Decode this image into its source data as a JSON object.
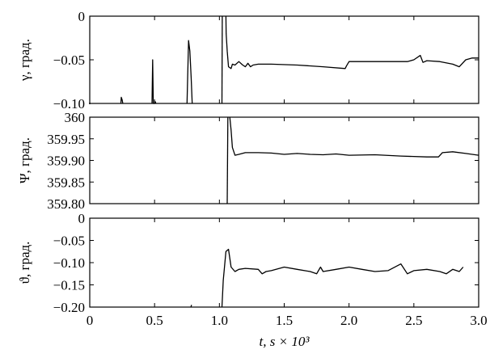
{
  "chart_data": [
    {
      "type": "line",
      "ylabel": "γ, град.",
      "ylim": [
        -0.1,
        0
      ],
      "xlim": [
        0,
        3.0
      ],
      "yticks": [
        0,
        -0.05,
        -0.1
      ],
      "ytick_labels": [
        "0",
        "−0.05",
        "−0.10"
      ],
      "series": [
        {
          "segments": [
            [
              [
                0.0,
                -0.1
              ]
            ],
            [
              [
                0.24,
                -0.1
              ],
              [
                0.243,
                -0.093
              ],
              [
                0.25,
                -0.096
              ],
              [
                0.255,
                -0.1
              ]
            ],
            [
              [
                0.48,
                -0.1
              ],
              [
                0.485,
                -0.05
              ],
              [
                0.49,
                -0.1
              ],
              [
                0.5,
                -0.1
              ],
              [
                0.505,
                -0.098
              ],
              [
                0.51,
                -0.1
              ]
            ],
            [
              [
                0.75,
                -0.1
              ],
              [
                0.762,
                -0.028
              ],
              [
                0.772,
                -0.04
              ],
              [
                0.782,
                -0.07
              ],
              [
                0.79,
                -0.1
              ]
            ],
            [
              [
                1.02,
                -0.1
              ],
              [
                1.022,
                0.0
              ]
            ],
            [
              [
                1.05,
                0.0
              ],
              [
                1.052,
                -0.02
              ],
              [
                1.06,
                -0.04
              ],
              [
                1.07,
                -0.058
              ],
              [
                1.09,
                -0.06
              ],
              [
                1.1,
                -0.055
              ],
              [
                1.12,
                -0.056
              ],
              [
                1.15,
                -0.052
              ],
              [
                1.18,
                -0.056
              ],
              [
                1.2,
                -0.058
              ],
              [
                1.22,
                -0.054
              ],
              [
                1.24,
                -0.058
              ],
              [
                1.26,
                -0.056
              ],
              [
                1.3,
                -0.055
              ],
              [
                1.4,
                -0.055
              ],
              [
                1.6,
                -0.056
              ],
              [
                1.8,
                -0.058
              ],
              [
                1.97,
                -0.06
              ],
              [
                1.98,
                -0.057
              ],
              [
                2.0,
                -0.052
              ],
              [
                2.1,
                -0.052
              ],
              [
                2.3,
                -0.052
              ],
              [
                2.45,
                -0.052
              ],
              [
                2.5,
                -0.05
              ],
              [
                2.55,
                -0.045
              ],
              [
                2.57,
                -0.053
              ],
              [
                2.6,
                -0.051
              ],
              [
                2.7,
                -0.052
              ],
              [
                2.8,
                -0.055
              ],
              [
                2.85,
                -0.058
              ],
              [
                2.9,
                -0.05
              ],
              [
                2.95,
                -0.048
              ],
              [
                3.0,
                -0.048
              ]
            ]
          ]
        }
      ]
    },
    {
      "type": "line",
      "ylabel": "Ψ, град.",
      "ylim": [
        359.8,
        360
      ],
      "xlim": [
        0,
        3.0
      ],
      "yticks": [
        360,
        359.95,
        359.9,
        359.85,
        359.8
      ],
      "ytick_labels": [
        "360",
        "359.95",
        "359.90",
        "359.85",
        "359.80"
      ],
      "series": [
        {
          "segments": [
            [
              [
                1.06,
                359.8
              ],
              [
                1.065,
                360.0
              ]
            ],
            [
              [
                1.08,
                360.0
              ],
              [
                1.09,
                359.97
              ],
              [
                1.1,
                359.93
              ],
              [
                1.12,
                359.912
              ],
              [
                1.15,
                359.914
              ],
              [
                1.2,
                359.918
              ],
              [
                1.3,
                359.918
              ],
              [
                1.4,
                359.917
              ],
              [
                1.5,
                359.914
              ],
              [
                1.6,
                359.916
              ],
              [
                1.7,
                359.914
              ],
              [
                1.8,
                359.913
              ],
              [
                1.9,
                359.915
              ],
              [
                2.0,
                359.912
              ],
              [
                2.2,
                359.913
              ],
              [
                2.4,
                359.91
              ],
              [
                2.6,
                359.908
              ],
              [
                2.69,
                359.908
              ],
              [
                2.72,
                359.918
              ],
              [
                2.8,
                359.92
              ],
              [
                2.9,
                359.916
              ],
              [
                3.0,
                359.912
              ]
            ]
          ]
        }
      ]
    },
    {
      "type": "line",
      "ylabel": "ϑ, град.",
      "xlabel": "t, s × 10³",
      "ylim": [
        -0.2,
        0
      ],
      "xlim": [
        0,
        3.0
      ],
      "yticks": [
        0,
        -0.05,
        -0.1,
        -0.15,
        -0.2
      ],
      "ytick_labels": [
        "0",
        "−0.05",
        "−0.10",
        "−0.15",
        "−0.20"
      ],
      "xticks": [
        0,
        0.5,
        1.0,
        1.5,
        2.0,
        2.5,
        3.0
      ],
      "xtick_labels": [
        "0",
        "0.5",
        "1.0",
        "1.5",
        "2.0",
        "2.5",
        "3.0"
      ],
      "series": [
        {
          "segments": [
            [
              [
                0.78,
                -0.2
              ],
              [
                0.785,
                -0.195
              ]
            ],
            [
              [
                1.02,
                -0.2
              ],
              [
                1.03,
                -0.14
              ],
              [
                1.05,
                -0.075
              ],
              [
                1.07,
                -0.07
              ],
              [
                1.09,
                -0.11
              ],
              [
                1.12,
                -0.12
              ],
              [
                1.15,
                -0.115
              ],
              [
                1.2,
                -0.113
              ],
              [
                1.3,
                -0.115
              ],
              [
                1.33,
                -0.125
              ],
              [
                1.36,
                -0.12
              ],
              [
                1.4,
                -0.118
              ],
              [
                1.5,
                -0.11
              ],
              [
                1.6,
                -0.115
              ],
              [
                1.7,
                -0.12
              ],
              [
                1.75,
                -0.125
              ],
              [
                1.78,
                -0.11
              ],
              [
                1.8,
                -0.12
              ],
              [
                1.9,
                -0.115
              ],
              [
                2.0,
                -0.11
              ],
              [
                2.1,
                -0.115
              ],
              [
                2.2,
                -0.12
              ],
              [
                2.3,
                -0.118
              ],
              [
                2.4,
                -0.103
              ],
              [
                2.45,
                -0.125
              ],
              [
                2.5,
                -0.118
              ],
              [
                2.6,
                -0.115
              ],
              [
                2.7,
                -0.12
              ],
              [
                2.75,
                -0.125
              ],
              [
                2.8,
                -0.115
              ],
              [
                2.85,
                -0.12
              ],
              [
                2.88,
                -0.11
              ]
            ]
          ]
        }
      ]
    }
  ]
}
